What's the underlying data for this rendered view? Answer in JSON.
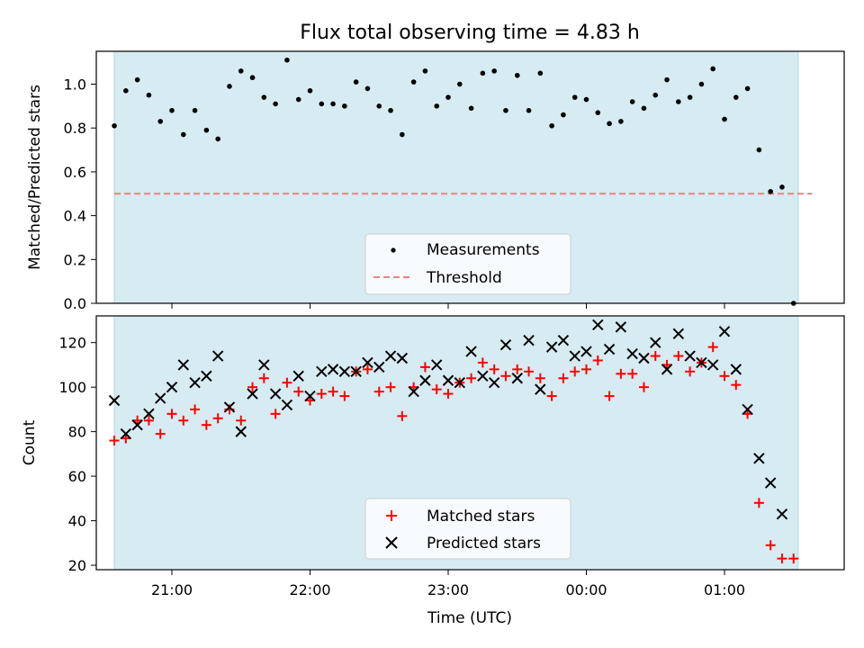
{
  "title": "Flux total observing time = 4.83 h",
  "colors": {
    "shade": "#add8e6",
    "threshold": "#f08080",
    "measurement": "#000000",
    "matched": "#ff0000",
    "predicted": "#000000"
  },
  "chart_data": [
    {
      "type": "scatter",
      "panel": "top",
      "ylabel": "Matched/Predicted stars",
      "ylim": [
        0,
        1.15
      ],
      "yticks": [
        0.0,
        0.2,
        0.4,
        0.6,
        0.8,
        1.0
      ],
      "ytick_labels": [
        "0.0",
        "0.2",
        "0.4",
        "0.6",
        "0.8",
        "1.0"
      ],
      "shaded_span": {
        "start": "20:35",
        "end": "01:32"
      },
      "threshold": {
        "value": 0.5,
        "start": "20:35",
        "end": "01:38"
      },
      "legend": {
        "position": "lower center",
        "entries": [
          "Measurements",
          "Threshold"
        ]
      },
      "series": [
        {
          "name": "Measurements",
          "points": [
            [
              "20:35",
              0.81
            ],
            [
              "20:40",
              0.97
            ],
            [
              "20:45",
              1.02
            ],
            [
              "20:50",
              0.95
            ],
            [
              "20:55",
              0.83
            ],
            [
              "21:00",
              0.88
            ],
            [
              "21:05",
              0.77
            ],
            [
              "21:10",
              0.88
            ],
            [
              "21:15",
              0.79
            ],
            [
              "21:20",
              0.75
            ],
            [
              "21:25",
              0.99
            ],
            [
              "21:30",
              1.06
            ],
            [
              "21:35",
              1.03
            ],
            [
              "21:40",
              0.94
            ],
            [
              "21:45",
              0.91
            ],
            [
              "21:50",
              1.11
            ],
            [
              "21:55",
              0.93
            ],
            [
              "22:00",
              0.97
            ],
            [
              "22:05",
              0.91
            ],
            [
              "22:10",
              0.91
            ],
            [
              "22:15",
              0.9
            ],
            [
              "22:20",
              1.01
            ],
            [
              "22:25",
              0.98
            ],
            [
              "22:30",
              0.9
            ],
            [
              "22:35",
              0.88
            ],
            [
              "22:40",
              0.77
            ],
            [
              "22:45",
              1.01
            ],
            [
              "22:50",
              1.06
            ],
            [
              "22:55",
              0.9
            ],
            [
              "23:00",
              0.94
            ],
            [
              "23:05",
              1.0
            ],
            [
              "23:10",
              0.89
            ],
            [
              "23:15",
              1.05
            ],
            [
              "23:20",
              1.06
            ],
            [
              "23:25",
              0.88
            ],
            [
              "23:30",
              1.04
            ],
            [
              "23:35",
              0.88
            ],
            [
              "23:40",
              1.05
            ],
            [
              "23:45",
              0.81
            ],
            [
              "23:50",
              0.86
            ],
            [
              "23:55",
              0.94
            ],
            [
              "00:00",
              0.93
            ],
            [
              "00:05",
              0.87
            ],
            [
              "00:10",
              0.82
            ],
            [
              "00:15",
              0.83
            ],
            [
              "00:20",
              0.92
            ],
            [
              "00:25",
              0.89
            ],
            [
              "00:30",
              0.95
            ],
            [
              "00:35",
              1.02
            ],
            [
              "00:40",
              0.92
            ],
            [
              "00:45",
              0.94
            ],
            [
              "00:50",
              1.0
            ],
            [
              "00:55",
              1.07
            ],
            [
              "01:00",
              0.84
            ],
            [
              "01:05",
              0.94
            ],
            [
              "01:10",
              0.98
            ],
            [
              "01:15",
              0.7
            ],
            [
              "01:20",
              0.51
            ],
            [
              "01:25",
              0.53
            ],
            [
              "01:30",
              0.0
            ]
          ]
        }
      ]
    },
    {
      "type": "scatter",
      "panel": "bottom",
      "xlabel": "Time (UTC)",
      "ylabel": "Count",
      "ylim": [
        18,
        132
      ],
      "yticks": [
        20,
        40,
        60,
        80,
        100,
        120
      ],
      "xticks": [
        "21:00",
        "22:00",
        "23:00",
        "00:00",
        "01:00"
      ],
      "shaded_span": {
        "start": "20:35",
        "end": "01:32"
      },
      "legend": {
        "position": "lower center",
        "entries": [
          "Matched stars",
          "Predicted stars"
        ]
      },
      "series": [
        {
          "name": "Matched stars",
          "marker": "+",
          "points": [
            [
              "20:35",
              76
            ],
            [
              "20:40",
              77
            ],
            [
              "20:45",
              85
            ],
            [
              "20:50",
              85
            ],
            [
              "20:55",
              79
            ],
            [
              "21:00",
              88
            ],
            [
              "21:05",
              85
            ],
            [
              "21:10",
              90
            ],
            [
              "21:15",
              83
            ],
            [
              "21:20",
              86
            ],
            [
              "21:25",
              90
            ],
            [
              "21:30",
              85
            ],
            [
              "21:35",
              100
            ],
            [
              "21:40",
              104
            ],
            [
              "21:45",
              88
            ],
            [
              "21:50",
              102
            ],
            [
              "21:55",
              98
            ],
            [
              "22:00",
              94
            ],
            [
              "22:05",
              97
            ],
            [
              "22:10",
              98
            ],
            [
              "22:15",
              96
            ],
            [
              "22:20",
              107
            ],
            [
              "22:25",
              108
            ],
            [
              "22:30",
              98
            ],
            [
              "22:35",
              100
            ],
            [
              "22:40",
              87
            ],
            [
              "22:45",
              100
            ],
            [
              "22:50",
              109
            ],
            [
              "22:55",
              99
            ],
            [
              "23:00",
              97
            ],
            [
              "23:05",
              102
            ],
            [
              "23:10",
              104
            ],
            [
              "23:15",
              111
            ],
            [
              "23:20",
              108
            ],
            [
              "23:25",
              105
            ],
            [
              "23:30",
              108
            ],
            [
              "23:35",
              107
            ],
            [
              "23:40",
              104
            ],
            [
              "23:45",
              96
            ],
            [
              "23:50",
              104
            ],
            [
              "23:55",
              107
            ],
            [
              "00:00",
              108
            ],
            [
              "00:05",
              112
            ],
            [
              "00:10",
              96
            ],
            [
              "00:15",
              106
            ],
            [
              "00:20",
              106
            ],
            [
              "00:25",
              100
            ],
            [
              "00:30",
              114
            ],
            [
              "00:35",
              110
            ],
            [
              "00:40",
              114
            ],
            [
              "00:45",
              107
            ],
            [
              "00:50",
              111
            ],
            [
              "00:55",
              118
            ],
            [
              "01:00",
              105
            ],
            [
              "01:05",
              101
            ],
            [
              "01:10",
              88
            ],
            [
              "01:15",
              48
            ],
            [
              "01:20",
              29
            ],
            [
              "01:25",
              23
            ],
            [
              "01:30",
              23
            ]
          ]
        },
        {
          "name": "Predicted stars",
          "marker": "x",
          "points": [
            [
              "20:35",
              94
            ],
            [
              "20:40",
              79
            ],
            [
              "20:45",
              83
            ],
            [
              "20:50",
              88
            ],
            [
              "20:55",
              95
            ],
            [
              "21:00",
              100
            ],
            [
              "21:05",
              110
            ],
            [
              "21:10",
              102
            ],
            [
              "21:15",
              105
            ],
            [
              "21:20",
              114
            ],
            [
              "21:25",
              91
            ],
            [
              "21:30",
              80
            ],
            [
              "21:35",
              97
            ],
            [
              "21:40",
              110
            ],
            [
              "21:45",
              97
            ],
            [
              "21:50",
              92
            ],
            [
              "21:55",
              105
            ],
            [
              "22:00",
              96
            ],
            [
              "22:05",
              107
            ],
            [
              "22:10",
              108
            ],
            [
              "22:15",
              107
            ],
            [
              "22:20",
              107
            ],
            [
              "22:25",
              111
            ],
            [
              "22:30",
              109
            ],
            [
              "22:35",
              114
            ],
            [
              "22:40",
              113
            ],
            [
              "22:45",
              98
            ],
            [
              "22:50",
              103
            ],
            [
              "22:55",
              110
            ],
            [
              "23:00",
              103
            ],
            [
              "23:05",
              102
            ],
            [
              "23:10",
              116
            ],
            [
              "23:15",
              105
            ],
            [
              "23:20",
              102
            ],
            [
              "23:25",
              119
            ],
            [
              "23:30",
              104
            ],
            [
              "23:35",
              121
            ],
            [
              "23:40",
              99
            ],
            [
              "23:45",
              118
            ],
            [
              "23:50",
              121
            ],
            [
              "23:55",
              114
            ],
            [
              "00:00",
              116
            ],
            [
              "00:05",
              128
            ],
            [
              "00:10",
              117
            ],
            [
              "00:15",
              127
            ],
            [
              "00:20",
              115
            ],
            [
              "00:25",
              113
            ],
            [
              "00:30",
              120
            ],
            [
              "00:35",
              108
            ],
            [
              "00:40",
              124
            ],
            [
              "00:45",
              114
            ],
            [
              "00:50",
              111
            ],
            [
              "00:55",
              110
            ],
            [
              "01:00",
              125
            ],
            [
              "01:05",
              108
            ],
            [
              "01:10",
              90
            ],
            [
              "01:15",
              68
            ],
            [
              "01:20",
              57
            ],
            [
              "01:25",
              43
            ]
          ]
        }
      ]
    }
  ]
}
